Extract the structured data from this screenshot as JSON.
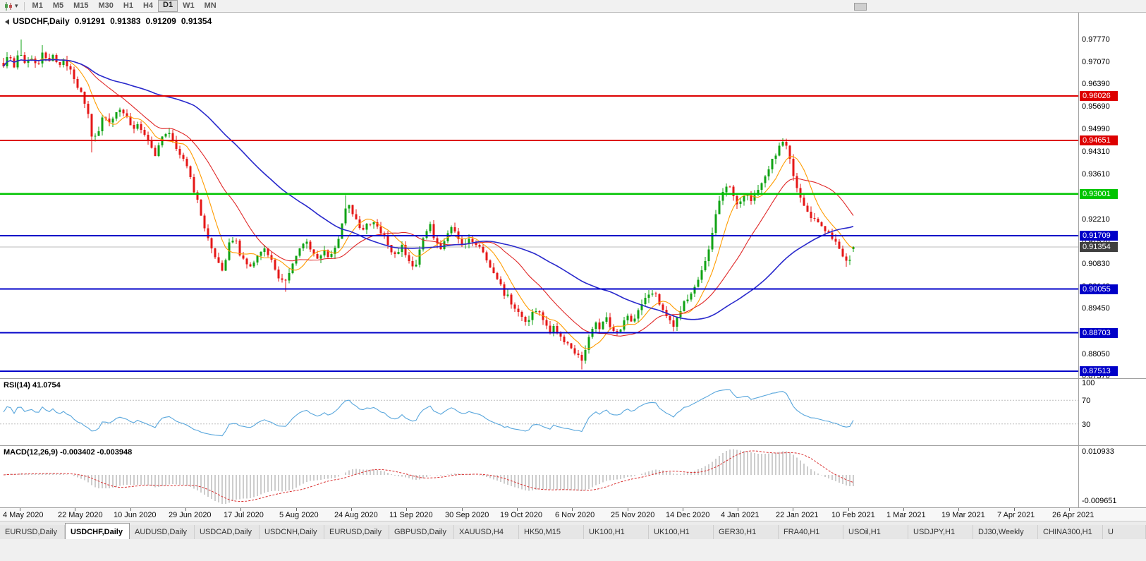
{
  "toolbar": {
    "timeframes": [
      "M1",
      "M5",
      "M15",
      "M30",
      "H1",
      "H4",
      "D1",
      "W1",
      "MN"
    ],
    "active_timeframe": "D1"
  },
  "title_bar": {
    "symbol": "USDCHF,Daily",
    "open": "0.91291",
    "high": "0.91383",
    "low": "0.91209",
    "close": "0.91354"
  },
  "price_scale": {
    "ticks": [
      "0.97770",
      "0.97070",
      "0.96390",
      "0.95690",
      "0.94990",
      "0.94310",
      "0.93610",
      "0.92910",
      "0.92210",
      "0.91520",
      "0.90830",
      "0.90140",
      "0.89450",
      "0.88750",
      "0.88050",
      "0.87370"
    ]
  },
  "levels": [
    {
      "price": 0.96026,
      "label": "0.96026",
      "color": "#dd0000",
      "width": 1.6
    },
    {
      "price": 0.94651,
      "label": "0.94651",
      "color": "#dd0000",
      "width": 1.6
    },
    {
      "price": 0.93001,
      "label": "0.93001",
      "color": "#00c400",
      "width": 2.2
    },
    {
      "price": 0.91709,
      "label": "0.91709",
      "color": "#0000c8",
      "width": 2
    },
    {
      "price": 0.90055,
      "label": "0.90055",
      "color": "#0000c8",
      "width": 2
    },
    {
      "price": 0.88703,
      "label": "0.88703",
      "color": "#0000c8",
      "width": 2
    },
    {
      "price": 0.87513,
      "label": "0.87513",
      "color": "#0000c8",
      "width": 2
    }
  ],
  "current_price": {
    "value": 0.91354,
    "label": "0.91354",
    "line_color": "#bbbbbb",
    "box_color": "#3f3f3f"
  },
  "date_axis": [
    "4 May 2020",
    "22 May 2020",
    "10 Jun 2020",
    "29 Jun 2020",
    "17 Jul 2020",
    "5 Aug 2020",
    "24 Aug 2020",
    "11 Sep 2020",
    "30 Sep 2020",
    "19 Oct 2020",
    "6 Nov 2020",
    "25 Nov 2020",
    "14 Dec 2020",
    "4 Jan 2021",
    "22 Jan 2021",
    "10 Feb 2021",
    "1 Mar 2021",
    "19 Mar 2021",
    "7 Apr 2021",
    "26 Apr 2021"
  ],
  "chart_data": {
    "type": "candlestick",
    "symbol": "USDCHF",
    "period": "Daily",
    "y_range": {
      "top": 0.986,
      "bottom": 0.873
    },
    "layout": {
      "x_start": 5,
      "x_step": 5,
      "bar_count": 242
    },
    "up_color": "#10a315",
    "down_color": "#e51717",
    "last_candle": {
      "open": 0.91291,
      "high": 0.91383,
      "low": 0.91209,
      "close": 0.91354
    },
    "wick_anchors": [
      {
        "x": 28,
        "high": 0.9777
      },
      {
        "x": 60,
        "high": 0.976
      },
      {
        "x": 132,
        "low": 0.9428
      },
      {
        "x": 404,
        "low": 0.8997
      },
      {
        "x": 492,
        "high": 0.9296
      },
      {
        "x": 826,
        "low": 0.8757
      },
      {
        "x": 1112,
        "high": 0.9472
      },
      {
        "x": 1202,
        "low": 0.9075
      }
    ],
    "moving_averages": [
      {
        "period": 8,
        "color": "#ff9c00"
      },
      {
        "period": 21,
        "color": "#e02828"
      },
      {
        "period": 55,
        "color": "#2929cc"
      }
    ],
    "price_path": [
      [
        5,
        0.97
      ],
      [
        12,
        0.9738
      ],
      [
        20,
        0.969
      ],
      [
        28,
        0.9745
      ],
      [
        36,
        0.9705
      ],
      [
        44,
        0.9722
      ],
      [
        52,
        0.9698
      ],
      [
        60,
        0.9735
      ],
      [
        68,
        0.9708
      ],
      [
        76,
        0.9725
      ],
      [
        84,
        0.9695
      ],
      [
        92,
        0.9712
      ],
      [
        100,
        0.9688
      ],
      [
        108,
        0.9645
      ],
      [
        116,
        0.9602
      ],
      [
        124,
        0.955
      ],
      [
        132,
        0.946
      ],
      [
        140,
        0.95
      ],
      [
        148,
        0.9545
      ],
      [
        156,
        0.952
      ],
      [
        164,
        0.9548
      ],
      [
        172,
        0.9562
      ],
      [
        180,
        0.9532
      ],
      [
        188,
        0.9505
      ],
      [
        196,
        0.9522
      ],
      [
        204,
        0.9482
      ],
      [
        212,
        0.9448
      ],
      [
        220,
        0.9425
      ],
      [
        228,
        0.9465
      ],
      [
        236,
        0.9492
      ],
      [
        244,
        0.947
      ],
      [
        252,
        0.944
      ],
      [
        260,
        0.9408
      ],
      [
        268,
        0.9368
      ],
      [
        276,
        0.9305
      ],
      [
        284,
        0.9245
      ],
      [
        292,
        0.918
      ],
      [
        300,
        0.913
      ],
      [
        308,
        0.9088
      ],
      [
        316,
        0.9068
      ],
      [
        324,
        0.914
      ],
      [
        332,
        0.9165
      ],
      [
        340,
        0.9118
      ],
      [
        348,
        0.9088
      ],
      [
        356,
        0.9072
      ],
      [
        364,
        0.9105
      ],
      [
        372,
        0.9138
      ],
      [
        380,
        0.9108
      ],
      [
        388,
        0.9082
      ],
      [
        396,
        0.9042
      ],
      [
        404,
        0.9018
      ],
      [
        412,
        0.9068
      ],
      [
        420,
        0.9105
      ],
      [
        428,
        0.914
      ],
      [
        436,
        0.9152
      ],
      [
        444,
        0.9118
      ],
      [
        452,
        0.9092
      ],
      [
        460,
        0.9122
      ],
      [
        468,
        0.9108
      ],
      [
        476,
        0.914
      ],
      [
        484,
        0.9195
      ],
      [
        492,
        0.9282
      ],
      [
        498,
        0.925
      ],
      [
        506,
        0.9215
      ],
      [
        514,
        0.919
      ],
      [
        522,
        0.9205
      ],
      [
        530,
        0.922
      ],
      [
        538,
        0.919
      ],
      [
        546,
        0.916
      ],
      [
        554,
        0.913
      ],
      [
        562,
        0.911
      ],
      [
        570,
        0.914
      ],
      [
        578,
        0.909
      ],
      [
        586,
        0.9065
      ],
      [
        594,
        0.9115
      ],
      [
        602,
        0.917
      ],
      [
        610,
        0.92
      ],
      [
        618,
        0.9155
      ],
      [
        626,
        0.913
      ],
      [
        634,
        0.918
      ],
      [
        642,
        0.92
      ],
      [
        650,
        0.9165
      ],
      [
        658,
        0.9145
      ],
      [
        666,
        0.9155
      ],
      [
        674,
        0.915
      ],
      [
        682,
        0.912
      ],
      [
        690,
        0.9095
      ],
      [
        698,
        0.906
      ],
      [
        706,
        0.903
      ],
      [
        714,
        0.8995
      ],
      [
        722,
        0.8975
      ],
      [
        730,
        0.895
      ],
      [
        738,
        0.8925
      ],
      [
        746,
        0.8905
      ],
      [
        754,
        0.893
      ],
      [
        762,
        0.895
      ],
      [
        770,
        0.8905
      ],
      [
        778,
        0.8875
      ],
      [
        786,
        0.889
      ],
      [
        794,
        0.886
      ],
      [
        802,
        0.8845
      ],
      [
        810,
        0.8825
      ],
      [
        818,
        0.8805
      ],
      [
        826,
        0.8775
      ],
      [
        834,
        0.886
      ],
      [
        842,
        0.89
      ],
      [
        850,
        0.889
      ],
      [
        858,
        0.892
      ],
      [
        866,
        0.889
      ],
      [
        874,
        0.8865
      ],
      [
        882,
        0.8895
      ],
      [
        890,
        0.8915
      ],
      [
        898,
        0.8905
      ],
      [
        906,
        0.894
      ],
      [
        914,
        0.897
      ],
      [
        922,
        0.9
      ],
      [
        930,
        0.8985
      ],
      [
        938,
        0.895
      ],
      [
        946,
        0.8915
      ],
      [
        954,
        0.8895
      ],
      [
        962,
        0.892
      ],
      [
        970,
        0.896
      ],
      [
        978,
        0.899
      ],
      [
        986,
        0.902
      ],
      [
        994,
        0.906
      ],
      [
        1002,
        0.91
      ],
      [
        1010,
        0.918
      ],
      [
        1018,
        0.926
      ],
      [
        1026,
        0.932
      ],
      [
        1032,
        0.933
      ],
      [
        1040,
        0.929
      ],
      [
        1046,
        0.9255
      ],
      [
        1052,
        0.9275
      ],
      [
        1058,
        0.93
      ],
      [
        1065,
        0.927
      ],
      [
        1072,
        0.93
      ],
      [
        1079,
        0.933
      ],
      [
        1086,
        0.936
      ],
      [
        1093,
        0.939
      ],
      [
        1100,
        0.9425
      ],
      [
        1107,
        0.945
      ],
      [
        1112,
        0.946
      ],
      [
        1118,
        0.942
      ],
      [
        1124,
        0.937
      ],
      [
        1130,
        0.932
      ],
      [
        1136,
        0.928
      ],
      [
        1142,
        0.9255
      ],
      [
        1148,
        0.9235
      ],
      [
        1154,
        0.922
      ],
      [
        1160,
        0.921
      ],
      [
        1166,
        0.92
      ],
      [
        1172,
        0.9185
      ],
      [
        1178,
        0.9165
      ],
      [
        1184,
        0.915
      ],
      [
        1190,
        0.9135
      ],
      [
        1196,
        0.9105
      ],
      [
        1202,
        0.909
      ],
      [
        1207,
        0.9115
      ],
      [
        1210,
        0.9135
      ]
    ]
  },
  "rsi_panel": {
    "label": "RSI(14) 41.0754",
    "period": 14,
    "value": 41.0754,
    "upper_level": 70,
    "lower_level": 30,
    "scale_labels": [
      "100",
      "70",
      "30"
    ],
    "line_color": "#58a6dc"
  },
  "macd_panel": {
    "label": "MACD(12,26,9) -0.003402 -0.003948",
    "fast": 12,
    "slow": 26,
    "signal": 9,
    "macd_value": -0.003402,
    "signal_value": -0.003948,
    "scale_top": "0.010933",
    "scale_bottom": "-0.009651",
    "histogram_color": "#9b9b9b",
    "signal_color": "#d93030"
  },
  "tab_bar": {
    "active_index": 1,
    "tabs": [
      "EURUSD,Daily",
      "USDCHF,Daily",
      "AUDUSD,Daily",
      "USDCAD,Daily",
      "USDCNH,Daily",
      "EURUSD,Daily",
      "GBPUSD,Daily",
      "XAUUSD,H4",
      "HK50,M15",
      "UK100,H1",
      "UK100,H1",
      "GER30,H1",
      "FRA40,H1",
      "USOil,H1",
      "USDJPY,H1",
      "DJ30,Weekly",
      "CHINA300,H1",
      "U"
    ]
  }
}
